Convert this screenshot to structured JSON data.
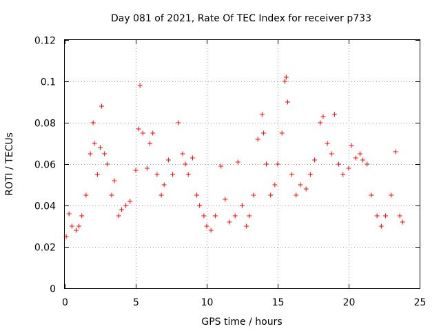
{
  "chart_data": {
    "type": "scatter",
    "title": "Day 081 of 2021, Rate Of TEC Index for receiver p733",
    "xlabel": "GPS time / hours",
    "ylabel": "ROTI / TECUs",
    "xlim": [
      0,
      25
    ],
    "ylim": [
      0,
      0.12
    ],
    "x_ticks": [
      0,
      5,
      10,
      15,
      20,
      25
    ],
    "y_ticks": [
      0,
      0.02,
      0.04,
      0.06,
      0.08,
      0.1,
      0.12
    ],
    "x_tick_labels": [
      "0",
      "5",
      "10",
      "15",
      "20",
      "25"
    ],
    "y_tick_labels": [
      "0",
      "0.02",
      "0.04",
      "0.06",
      "0.08",
      "0.1",
      "0.12"
    ],
    "grid": true,
    "marker": "+",
    "series_color": "#ff0000",
    "series": [
      {
        "x": [
          0.1,
          0.3,
          0.5,
          0.8,
          1.0,
          1.2,
          1.5,
          1.8,
          2.0,
          2.1,
          2.3,
          2.5,
          2.6,
          2.8,
          3.0,
          3.3,
          3.5,
          3.8,
          4.0,
          4.3,
          4.6,
          5.0,
          5.2,
          5.3,
          5.5,
          5.8,
          6.0,
          6.2,
          6.5,
          6.8,
          7.0,
          7.3,
          7.6,
          8.0,
          8.3,
          8.5,
          8.7,
          9.0,
          9.3,
          9.5,
          9.8,
          10.0,
          10.3,
          10.6,
          11.0,
          11.3,
          11.6,
          12.0,
          12.2,
          12.5,
          12.8,
          13.0,
          13.3,
          13.6,
          13.9,
          14.0,
          14.2,
          14.5,
          14.8,
          15.0,
          15.3,
          15.5,
          15.6,
          15.7,
          16.0,
          16.3,
          16.6,
          17.0,
          17.3,
          17.6,
          18.0,
          18.2,
          18.5,
          18.8,
          19.0,
          19.3,
          19.6,
          20.0,
          20.2,
          20.5,
          20.8,
          21.0,
          21.3,
          21.6,
          22.0,
          22.3,
          22.6,
          23.0,
          23.3,
          23.6,
          23.8
        ],
        "y": [
          0.025,
          0.036,
          0.03,
          0.028,
          0.03,
          0.035,
          0.045,
          0.065,
          0.08,
          0.07,
          0.055,
          0.068,
          0.088,
          0.065,
          0.06,
          0.045,
          0.052,
          0.035,
          0.038,
          0.04,
          0.042,
          0.057,
          0.077,
          0.098,
          0.075,
          0.058,
          0.07,
          0.075,
          0.055,
          0.045,
          0.05,
          0.062,
          0.055,
          0.08,
          0.065,
          0.06,
          0.055,
          0.063,
          0.045,
          0.04,
          0.035,
          0.03,
          0.028,
          0.035,
          0.059,
          0.043,
          0.032,
          0.035,
          0.061,
          0.04,
          0.03,
          0.035,
          0.045,
          0.072,
          0.084,
          0.075,
          0.06,
          0.045,
          0.05,
          0.06,
          0.075,
          0.1,
          0.102,
          0.09,
          0.055,
          0.045,
          0.05,
          0.048,
          0.055,
          0.062,
          0.08,
          0.083,
          0.07,
          0.065,
          0.084,
          0.06,
          0.055,
          0.058,
          0.069,
          0.063,
          0.065,
          0.062,
          0.06,
          0.045,
          0.035,
          0.03,
          0.035,
          0.045,
          0.066,
          0.035,
          0.032
        ]
      }
    ]
  }
}
